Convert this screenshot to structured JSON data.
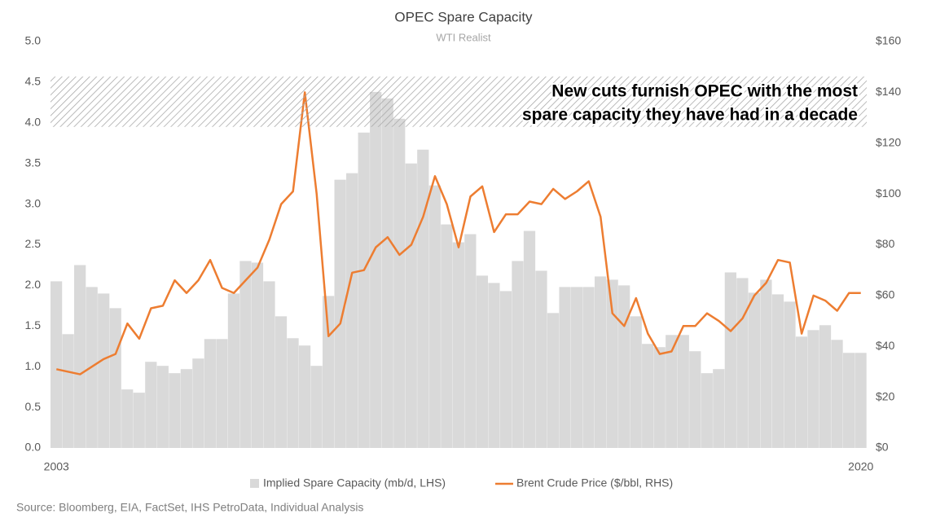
{
  "chart_data": {
    "type": "combo",
    "title": "OPEC Spare Capacity",
    "subtitle": "WTI Realist",
    "source": "Source: Bloomberg, EIA, FactSet, IHS PetroData, Individual Analysis",
    "annotation": {
      "text": [
        "New cuts furnish OPEC with the most",
        "spare capacity they have had in a decade"
      ],
      "band": [
        3.95,
        4.57
      ]
    },
    "categories": [
      "2003",
      null,
      null,
      null,
      null,
      null,
      null,
      null,
      null,
      null,
      null,
      null,
      null,
      null,
      null,
      null,
      null,
      null,
      null,
      null,
      null,
      null,
      null,
      null,
      null,
      null,
      null,
      null,
      null,
      null,
      null,
      null,
      null,
      null,
      null,
      null,
      null,
      null,
      null,
      null,
      null,
      null,
      null,
      null,
      null,
      null,
      null,
      null,
      null,
      null,
      null,
      null,
      null,
      null,
      null,
      null,
      null,
      null,
      null,
      null,
      null,
      null,
      null,
      null,
      null,
      null,
      null,
      null,
      "2020"
    ],
    "series": [
      {
        "name": "Implied Spare Capacity (mb/d, LHS)",
        "type": "bar",
        "axis": "y",
        "color": "#d9d9d9",
        "values": [
          2.05,
          1.4,
          2.25,
          1.98,
          1.9,
          1.72,
          0.72,
          0.68,
          1.06,
          1.01,
          0.92,
          0.97,
          1.1,
          1.34,
          1.34,
          1.9,
          2.3,
          2.28,
          2.05,
          1.62,
          1.35,
          1.26,
          1.01,
          1.87,
          3.3,
          3.38,
          3.88,
          4.38,
          4.3,
          4.05,
          3.5,
          3.67,
          3.23,
          2.75,
          2.53,
          2.63,
          2.12,
          2.03,
          1.93,
          2.3,
          2.67,
          2.18,
          1.66,
          1.98,
          1.98,
          1.98,
          2.11,
          2.07,
          2.0,
          1.62,
          1.28,
          1.24,
          1.39,
          1.39,
          1.19,
          0.92,
          0.97,
          2.16,
          2.09,
          1.91,
          2.07,
          1.89,
          1.8,
          1.37,
          1.45,
          1.51,
          1.33,
          1.17,
          1.17
        ]
      },
      {
        "name": "Brent Crude Price ($/bbl, RHS)",
        "type": "line",
        "axis": "y2",
        "color": "#ed7d31",
        "values": [
          31,
          30,
          29,
          32,
          35,
          37,
          49,
          43,
          55,
          56,
          66,
          61,
          66,
          74,
          63,
          61,
          66,
          71,
          82,
          96,
          101,
          140,
          100,
          44,
          49,
          69,
          70,
          79,
          83,
          76,
          80,
          91,
          107,
          96,
          79,
          99,
          103,
          85,
          92,
          92,
          97,
          96,
          102,
          98,
          101,
          105,
          91,
          53,
          48,
          59,
          45,
          37,
          38,
          48,
          48,
          53,
          50,
          46,
          51,
          60,
          65,
          74,
          73,
          45,
          60,
          58,
          54,
          61,
          61
        ]
      }
    ],
    "ylim": [
      0,
      5
    ],
    "yticks": [
      {
        "value": 0,
        "label": "0.0"
      },
      0.5,
      {
        "value": 1,
        "label": "1.0"
      },
      1.5,
      {
        "value": 2,
        "label": "2.0"
      },
      2.5,
      {
        "value": 3,
        "label": "3.0"
      },
      3.5,
      {
        "value": 4,
        "label": "4.0"
      },
      4.5,
      {
        "value": 5,
        "label": "5.0"
      }
    ],
    "y2lim": [
      0,
      160
    ],
    "y2ticks": [
      {
        "value": 0,
        "label": "$0"
      },
      {
        "value": 20,
        "label": "$20"
      },
      {
        "value": 40,
        "label": "$40"
      },
      {
        "value": 60,
        "label": "$60"
      },
      {
        "value": 80,
        "label": "$80"
      },
      {
        "value": 100,
        "label": "$100"
      },
      {
        "value": 120,
        "label": "$120"
      },
      {
        "value": 140,
        "label": "$140"
      },
      {
        "value": 160,
        "label": "$160"
      }
    ],
    "grid": false,
    "legend": "bottom"
  }
}
